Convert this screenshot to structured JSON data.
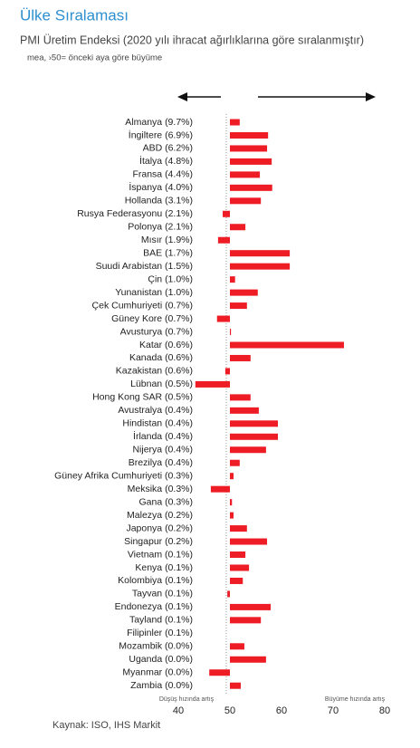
{
  "chart_data": {
    "type": "hbar",
    "title": "Ülke Sıralaması",
    "subtitle": "PMI Üretim Endeksi (2020 yılı ihracat ağırlıklarına göre sıralanmıştır)",
    "note": "mea, ›50= önceki aya göre büyüme",
    "left_label": "Düşüş hızında artış",
    "right_label": "Büyüme hızında artış",
    "source": "Kaynak: ISO, IHS Markit",
    "categories": [
      "Almanya (9.7%)",
      "İngiltere (6.9%)",
      "ABD (6.2%)",
      "İtalya (4.8%)",
      "Fransa (4.4%)",
      "İspanya (4.0%)",
      "Hollanda (3.1%)",
      "Rusya Federasyonu (2.1%)",
      "Polonya (2.1%)",
      "Mısır (1.9%)",
      "BAE (1.7%)",
      "Suudi Arabistan (1.5%)",
      "Çin (1.0%)",
      "Yunanistan (1.0%)",
      "Çek Cumhuriyeti (0.7%)",
      "Güney Kore (0.7%)",
      "Avusturya (0.7%)",
      "Katar (0.6%)",
      "Kanada (0.6%)",
      "Kazakistan (0.6%)",
      "Lübnan (0.5%)",
      "Hong Kong SAR (0.5%)",
      "Avustralya (0.4%)",
      "Hindistan (0.4%)",
      "İrlanda (0.4%)",
      "Nijerya (0.4%)",
      "Brezilya (0.4%)",
      "Güney Afrika Cumhuriyeti (0.3%)",
      "Meksika (0.3%)",
      "Gana (0.3%)",
      "Malezya (0.2%)",
      "Japonya (0.2%)",
      "Singapur (0.2%)",
      "Vietnam (0.1%)",
      "Kenya (0.1%)",
      "Kolombiya (0.1%)",
      "Tayvan (0.1%)",
      "Endonezya (0.1%)",
      "Tayland (0.1%)",
      "Filipinler (0.1%)",
      "Mozambik (0.0%)",
      "Uganda (0.0%)",
      "Myanmar (0.0%)",
      "Zambia (0.0%)"
    ],
    "values": [
      51.9,
      57.4,
      57.2,
      58.1,
      55.8,
      58.2,
      56.0,
      48.6,
      53.0,
      47.7,
      61.6,
      61.6,
      51.0,
      55.4,
      53.3,
      47.5,
      50.2,
      72.1,
      54.0,
      49.1,
      43.3,
      54.0,
      55.6,
      59.3,
      59.3,
      57.0,
      51.9,
      50.7,
      46.3,
      50.4,
      50.7,
      53.3,
      57.2,
      53.0,
      53.7,
      52.5,
      49.5,
      57.9,
      56.0,
      50.0,
      52.8,
      57.0,
      46.0,
      52.1
    ],
    "color": "#ee1c25",
    "bar_base": 50,
    "xlim": [
      40,
      80
    ],
    "xticks": [
      40,
      50,
      60,
      70,
      80
    ]
  }
}
